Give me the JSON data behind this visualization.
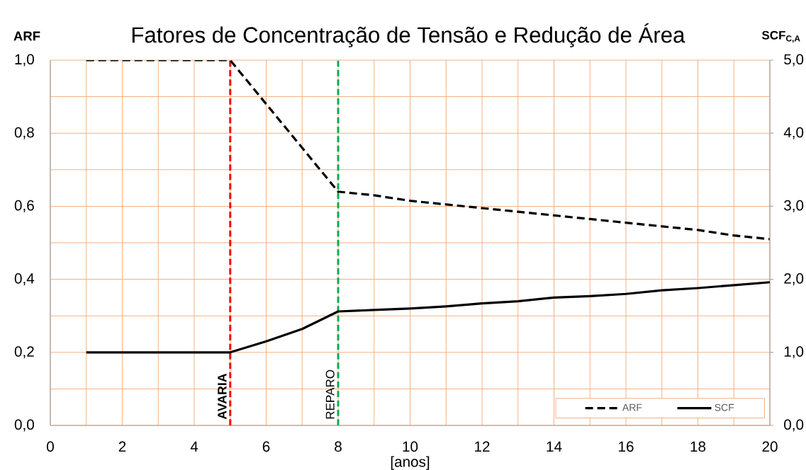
{
  "chart_data": {
    "type": "line",
    "title": "Fatores de Concentração de Tensão e Redução de Área",
    "xlabel": "[anos]",
    "ylabel": "ARF",
    "y2label": "SCF$_{C,A}$",
    "x": [
      1,
      2,
      3,
      4,
      5,
      6,
      7,
      8,
      9,
      10,
      11,
      12,
      13,
      14,
      15,
      16,
      17,
      18,
      19,
      20
    ],
    "series": [
      {
        "name": "ARF",
        "color": "#000000",
        "line_style": "dashed",
        "values": [
          1.0,
          1.0,
          1.0,
          1.0,
          1.0,
          0.88,
          0.76,
          0.64,
          0.63,
          0.615,
          0.605,
          0.595,
          0.585,
          0.575,
          0.565,
          0.555,
          0.545,
          0.535,
          0.52,
          0.51
        ]
      },
      {
        "name": "SCF",
        "color": "#000000",
        "line_style": "solid",
        "axis": "y2",
        "values": [
          1.0,
          1.0,
          1.0,
          1.0,
          1.0,
          1.15,
          1.32,
          1.56,
          1.58,
          1.6,
          1.63,
          1.67,
          1.7,
          1.75,
          1.77,
          1.8,
          1.85,
          1.88,
          1.92,
          1.96
        ]
      }
    ],
    "xlim": [
      0,
      20
    ],
    "xticks": [
      0,
      {
        "value": 1,
        "label": null
      },
      2,
      {
        "value": 3,
        "label": null
      },
      4,
      {
        "value": 5,
        "label": null
      },
      6,
      {
        "value": 7,
        "label": null
      },
      8,
      {
        "value": 9,
        "label": null
      },
      10,
      {
        "value": 11,
        "label": null
      },
      12,
      {
        "value": 13,
        "label": null
      },
      14,
      {
        "value": 15,
        "label": null
      },
      16,
      {
        "value": 17,
        "label": null
      },
      18,
      {
        "value": 19,
        "label": null
      },
      20
    ],
    "ylim": [
      0,
      1
    ],
    "yticks": [
      {
        "value": 0,
        "label": "0,0"
      },
      {
        "value": 0.1,
        "label": null
      },
      {
        "value": 0.2,
        "label": "0,2"
      },
      {
        "value": 0.3,
        "label": null
      },
      {
        "value": 0.4,
        "label": "0,4"
      },
      {
        "value": 0.5,
        "label": null
      },
      {
        "value": 0.6,
        "label": "0,6"
      },
      {
        "value": 0.7,
        "label": null
      },
      {
        "value": 0.8,
        "label": "0,8"
      },
      {
        "value": 0.9,
        "label": null
      },
      {
        "value": 1.0,
        "label": "1,0"
      }
    ],
    "y2lim": [
      0,
      5
    ],
    "y2ticks": [
      {
        "value": 0,
        "label": "0,0"
      },
      {
        "value": 1,
        "label": "1,0"
      },
      {
        "value": 2,
        "label": "2,0"
      },
      {
        "value": 3,
        "label": "3,0"
      },
      {
        "value": 4,
        "label": "4,0"
      },
      {
        "value": 5,
        "label": "5,0"
      }
    ],
    "ref_lines": [
      {
        "axis": "x",
        "value": 5,
        "label": "AVARIA",
        "color": "#ff0000",
        "line_style": "dashed"
      },
      {
        "axis": "x",
        "value": 8,
        "label": "REPARO",
        "color": "#00b050",
        "line_style": "dashed"
      }
    ],
    "grid": true,
    "legend": "bottom right",
    "marker": "none"
  }
}
